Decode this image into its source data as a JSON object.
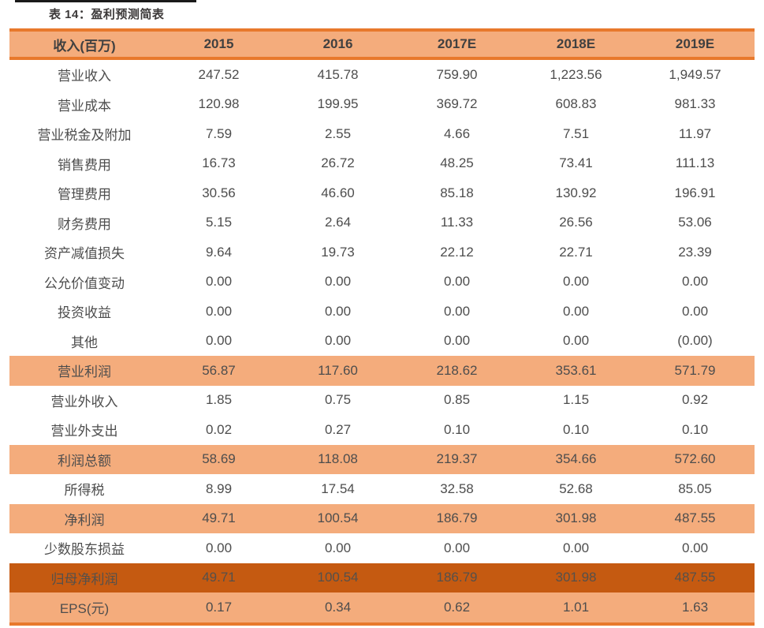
{
  "caption": {
    "label": "表 14：盈利预测简表"
  },
  "colors": {
    "band_light": "#F4AC7C",
    "band_dark": "#C55A11",
    "accent_border": "#E8792C",
    "text": "#4D4D4D",
    "header_text": "#404040",
    "dark_row_text": "#55504B",
    "caption_rule": "#1A1A1A",
    "caption_text": "#3B3838"
  },
  "table": {
    "columns": [
      "收入(百万)",
      "2015",
      "2016",
      "2017E",
      "2018E",
      "2019E"
    ],
    "rows": [
      {
        "label": "营业收入",
        "style": "normal",
        "values": [
          "247.52",
          "415.78",
          "759.90",
          "1,223.56",
          "1,949.57"
        ]
      },
      {
        "label": "营业成本",
        "style": "normal",
        "values": [
          "120.98",
          "199.95",
          "369.72",
          "608.83",
          "981.33"
        ]
      },
      {
        "label": "营业税金及附加",
        "style": "normal",
        "values": [
          "7.59",
          "2.55",
          "4.66",
          "7.51",
          "11.97"
        ]
      },
      {
        "label": "销售费用",
        "style": "normal",
        "values": [
          "16.73",
          "26.72",
          "48.25",
          "73.41",
          "111.13"
        ]
      },
      {
        "label": "管理费用",
        "style": "normal",
        "values": [
          "30.56",
          "46.60",
          "85.18",
          "130.92",
          "196.91"
        ]
      },
      {
        "label": "财务费用",
        "style": "normal",
        "values": [
          "5.15",
          "2.64",
          "11.33",
          "26.56",
          "53.06"
        ]
      },
      {
        "label": "资产减值损失",
        "style": "normal",
        "values": [
          "9.64",
          "19.73",
          "22.12",
          "22.71",
          "23.39"
        ]
      },
      {
        "label": "公允价值变动",
        "style": "normal",
        "values": [
          "0.00",
          "0.00",
          "0.00",
          "0.00",
          "0.00"
        ]
      },
      {
        "label": "投资收益",
        "style": "normal",
        "values": [
          "0.00",
          "0.00",
          "0.00",
          "0.00",
          "0.00"
        ]
      },
      {
        "label": "其他",
        "style": "normal",
        "values": [
          "0.00",
          "0.00",
          "0.00",
          "0.00",
          "(0.00)"
        ]
      },
      {
        "label": "营业利润",
        "style": "highlight",
        "values": [
          "56.87",
          "117.60",
          "218.62",
          "353.61",
          "571.79"
        ]
      },
      {
        "label": "营业外收入",
        "style": "normal",
        "values": [
          "1.85",
          "0.75",
          "0.85",
          "1.15",
          "0.92"
        ]
      },
      {
        "label": "营业外支出",
        "style": "normal",
        "values": [
          "0.02",
          "0.27",
          "0.10",
          "0.10",
          "0.10"
        ]
      },
      {
        "label": "利润总额",
        "style": "highlight",
        "values": [
          "58.69",
          "118.08",
          "219.37",
          "354.66",
          "572.60"
        ]
      },
      {
        "label": "所得税",
        "style": "normal",
        "values": [
          "8.99",
          "17.54",
          "32.58",
          "52.68",
          "85.05"
        ]
      },
      {
        "label": "净利润",
        "style": "highlight",
        "values": [
          "49.71",
          "100.54",
          "186.79",
          "301.98",
          "487.55"
        ]
      },
      {
        "label": "少数股东损益",
        "style": "normal",
        "values": [
          "0.00",
          "0.00",
          "0.00",
          "0.00",
          "0.00"
        ]
      },
      {
        "label": "归母净利润",
        "style": "dark",
        "values": [
          "49.71",
          "100.54",
          "186.79",
          "301.98",
          "487.55"
        ]
      },
      {
        "label": "EPS(元)",
        "style": "highlight",
        "values": [
          "0.17",
          "0.34",
          "0.62",
          "1.01",
          "1.63"
        ]
      }
    ]
  }
}
